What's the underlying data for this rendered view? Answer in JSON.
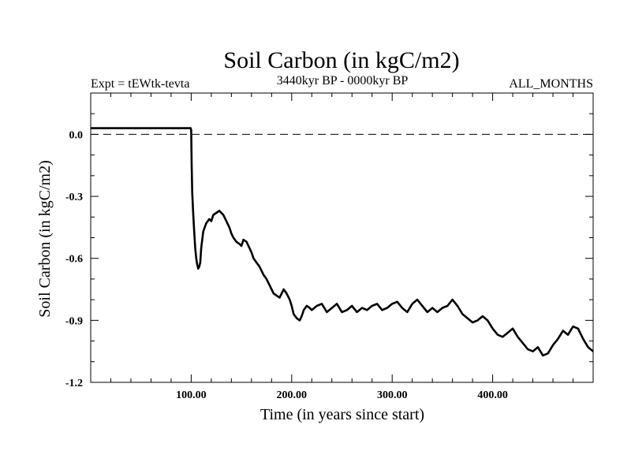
{
  "chart_data": {
    "type": "line",
    "title": "Soil Carbon (in kgC/m2)",
    "subtitle_left": "Expt = tEWtk-tevta",
    "subtitle_center": "3440kyr BP - 0000kyr BP",
    "subtitle_right": "ALL_MONTHS",
    "xlabel": "Time (in years since start)",
    "ylabel": "Soil Carbon (in kgC/m2)",
    "xlim": [
      0,
      500
    ],
    "ylim": [
      -1.2,
      0.2
    ],
    "x_major_ticks": [
      100,
      200,
      300,
      400
    ],
    "x_tick_labels": [
      "100.00",
      "200.00",
      "300.00",
      "400.00"
    ],
    "y_major_ticks": [
      -1.2,
      -0.9,
      -0.6,
      -0.3,
      0.0
    ],
    "y_tick_labels": [
      "-1.2",
      "-0.9",
      "-0.6",
      "-0.3",
      "0.0"
    ],
    "reference_line": {
      "y": 0.0,
      "style": "dashed"
    },
    "series": [
      {
        "name": "Soil Carbon",
        "color": "#000000",
        "x": [
          0,
          99.5,
          100,
          100.5,
          101,
          102,
          103,
          104,
          105,
          106,
          107,
          108,
          109,
          110,
          112,
          115,
          118,
          120,
          122,
          125,
          128,
          130,
          132,
          135,
          138,
          140,
          142,
          145,
          148,
          150,
          152,
          155,
          158,
          160,
          162,
          165,
          168,
          170,
          172,
          175,
          178,
          180,
          182,
          185,
          188,
          190,
          192,
          195,
          198,
          200,
          202,
          205,
          208,
          210,
          212,
          215,
          218,
          220,
          225,
          230,
          235,
          240,
          245,
          250,
          255,
          260,
          265,
          270,
          275,
          280,
          285,
          290,
          295,
          300,
          305,
          310,
          315,
          320,
          325,
          330,
          335,
          340,
          345,
          350,
          355,
          360,
          365,
          370,
          375,
          380,
          385,
          390,
          395,
          400,
          405,
          410,
          415,
          420,
          425,
          430,
          435,
          440,
          445,
          450,
          455,
          460,
          465,
          470,
          475,
          480,
          485,
          490,
          495,
          500
        ],
        "values": [
          0.03,
          0.03,
          0.02,
          -0.15,
          -0.28,
          -0.38,
          -0.47,
          -0.55,
          -0.6,
          -0.63,
          -0.65,
          -0.64,
          -0.62,
          -0.55,
          -0.47,
          -0.43,
          -0.41,
          -0.42,
          -0.39,
          -0.38,
          -0.37,
          -0.38,
          -0.39,
          -0.42,
          -0.45,
          -0.48,
          -0.5,
          -0.52,
          -0.53,
          -0.54,
          -0.51,
          -0.52,
          -0.55,
          -0.57,
          -0.6,
          -0.62,
          -0.64,
          -0.66,
          -0.68,
          -0.7,
          -0.73,
          -0.75,
          -0.77,
          -0.78,
          -0.79,
          -0.77,
          -0.75,
          -0.77,
          -0.8,
          -0.83,
          -0.87,
          -0.89,
          -0.9,
          -0.88,
          -0.85,
          -0.83,
          -0.84,
          -0.85,
          -0.83,
          -0.82,
          -0.86,
          -0.84,
          -0.82,
          -0.86,
          -0.85,
          -0.83,
          -0.86,
          -0.84,
          -0.85,
          -0.83,
          -0.82,
          -0.85,
          -0.84,
          -0.82,
          -0.81,
          -0.84,
          -0.86,
          -0.82,
          -0.8,
          -0.83,
          -0.86,
          -0.84,
          -0.86,
          -0.84,
          -0.83,
          -0.8,
          -0.83,
          -0.87,
          -0.89,
          -0.91,
          -0.9,
          -0.88,
          -0.9,
          -0.94,
          -0.97,
          -0.98,
          -0.96,
          -0.94,
          -0.98,
          -1.01,
          -1.04,
          -1.05,
          -1.03,
          -1.07,
          -1.06,
          -1.02,
          -0.99,
          -0.95,
          -0.97,
          -0.93,
          -0.94,
          -0.99,
          -1.03,
          -1.05
        ]
      }
    ]
  }
}
